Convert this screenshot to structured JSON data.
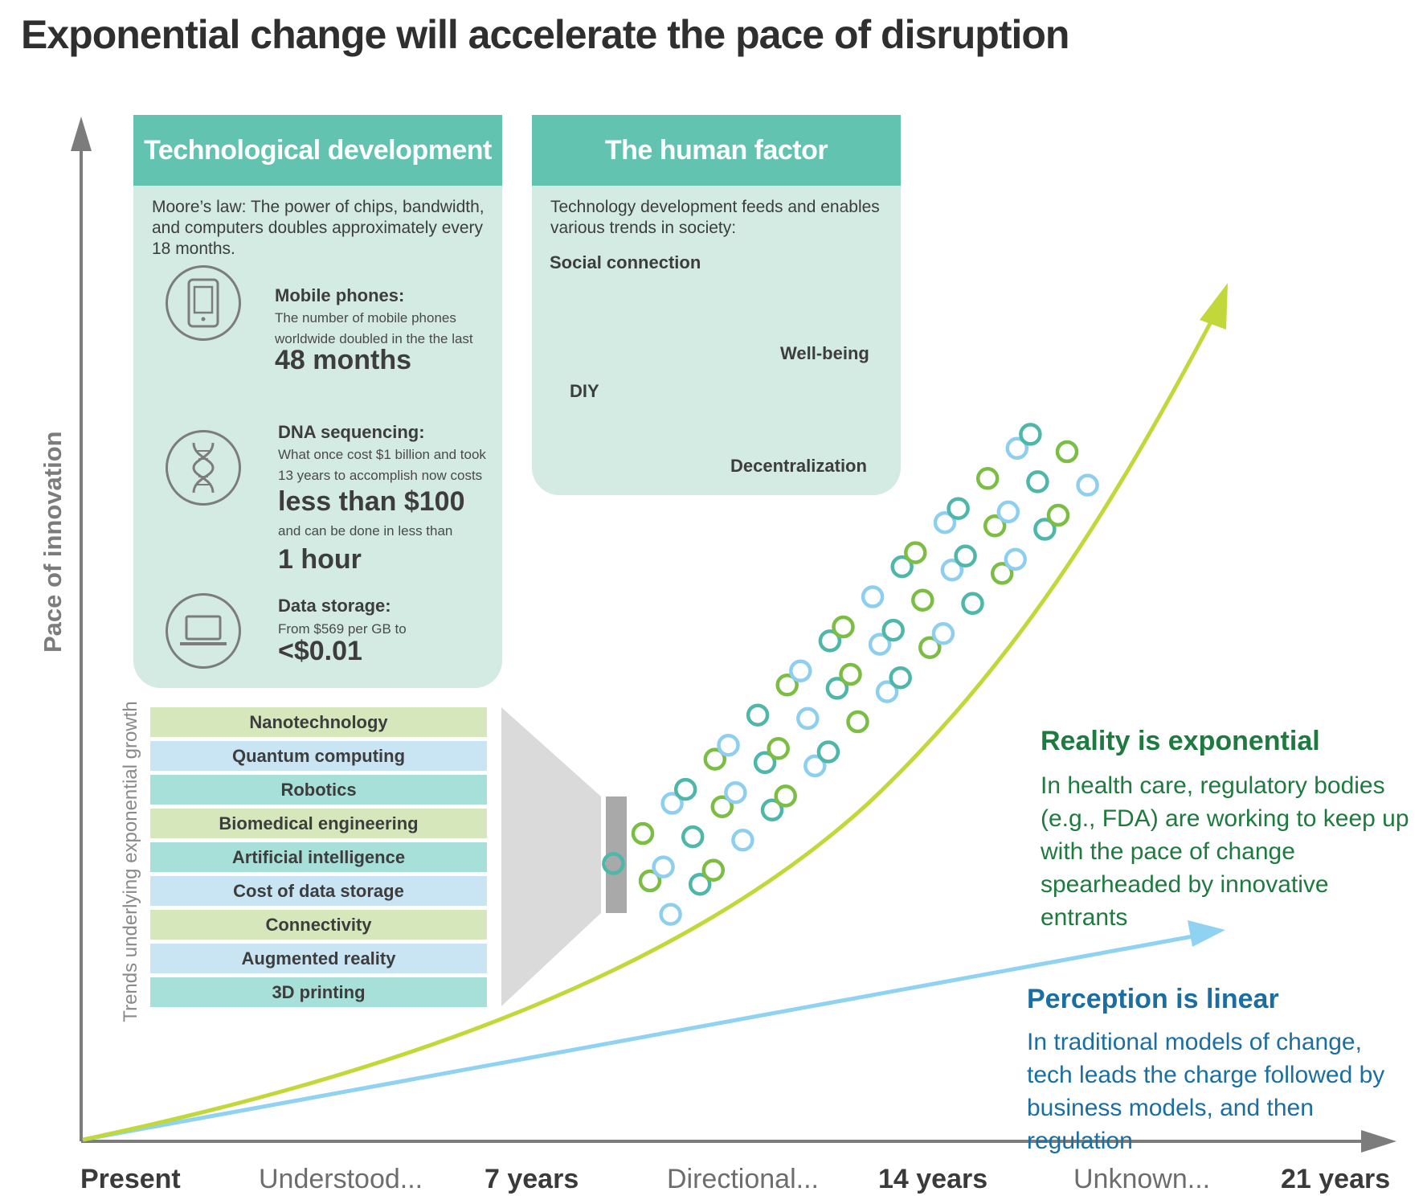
{
  "title": "Exponential change will accelerate the pace of disruption",
  "y_axis_label": "Pace of innovation",
  "x_axis_labels": [
    "Present",
    "Understood...",
    "7 years",
    "Directional...",
    "14 years",
    "Unknown...",
    "21 years"
  ],
  "tech_panel": {
    "header": "Technological development",
    "intro": "Moore’s law: The power of chips, bandwidth, and computers doubles approximately every 18 months.",
    "stats": [
      {
        "icon": "mobile-phone-icon",
        "heading": "Mobile phones:",
        "text": "The number of mobile phones worldwide doubled in the the last",
        "big": "48 months"
      },
      {
        "icon": "dna-icon",
        "heading": "DNA sequencing:",
        "text": "What once cost $1 billion and took 13 years to accomplish now costs",
        "big": "less than $100",
        "text2": "and can be done in less than",
        "big2": "1 hour"
      },
      {
        "icon": "laptop-icon",
        "heading": "Data storage:",
        "text": "From $569 per GB to",
        "big": "<$0.01"
      }
    ]
  },
  "human_panel": {
    "header": "The human factor",
    "intro": "Technology development feeds and enables various trends in society:",
    "labels": {
      "social": "Social connection",
      "wellbeing": "Well-being",
      "diy": "DIY",
      "decentral": "Decentralization"
    }
  },
  "trends_caption": "Trends underlying exponential growth",
  "trends": [
    "Nanotechnology",
    "Quantum computing",
    "Robotics",
    "Biomedical engineering",
    "Artificial intelligence",
    "Cost of data storage",
    "Connectivity",
    "Augmented reality",
    "3D printing"
  ],
  "reality": {
    "heading": "Reality is exponential",
    "body": "In health care, regulatory bodies (e.g., FDA) are working to keep up with the pace of change spearheaded by innovative entrants"
  },
  "perception": {
    "heading": "Perception is linear",
    "body": "In traditional models of change, tech leads the charge followed by business models, and then regulation"
  },
  "colors": {
    "header_teal": "#62c3b1",
    "panel_mint": "#d3ebe3",
    "lime": "#c2d83a",
    "sky_blue": "#8fd2f2",
    "reality_green": "#1e7a3e",
    "perception_blue": "#1b6ea1",
    "axis_gray": "#7c7c7c",
    "row_green": "#d6e8bb",
    "row_blue": "#c9e5f4",
    "row_teal": "#a6e0d9",
    "dot_green": "#7cbe44",
    "dot_teal": "#4fb7a9",
    "dot_blue": "#8ecff0"
  }
}
